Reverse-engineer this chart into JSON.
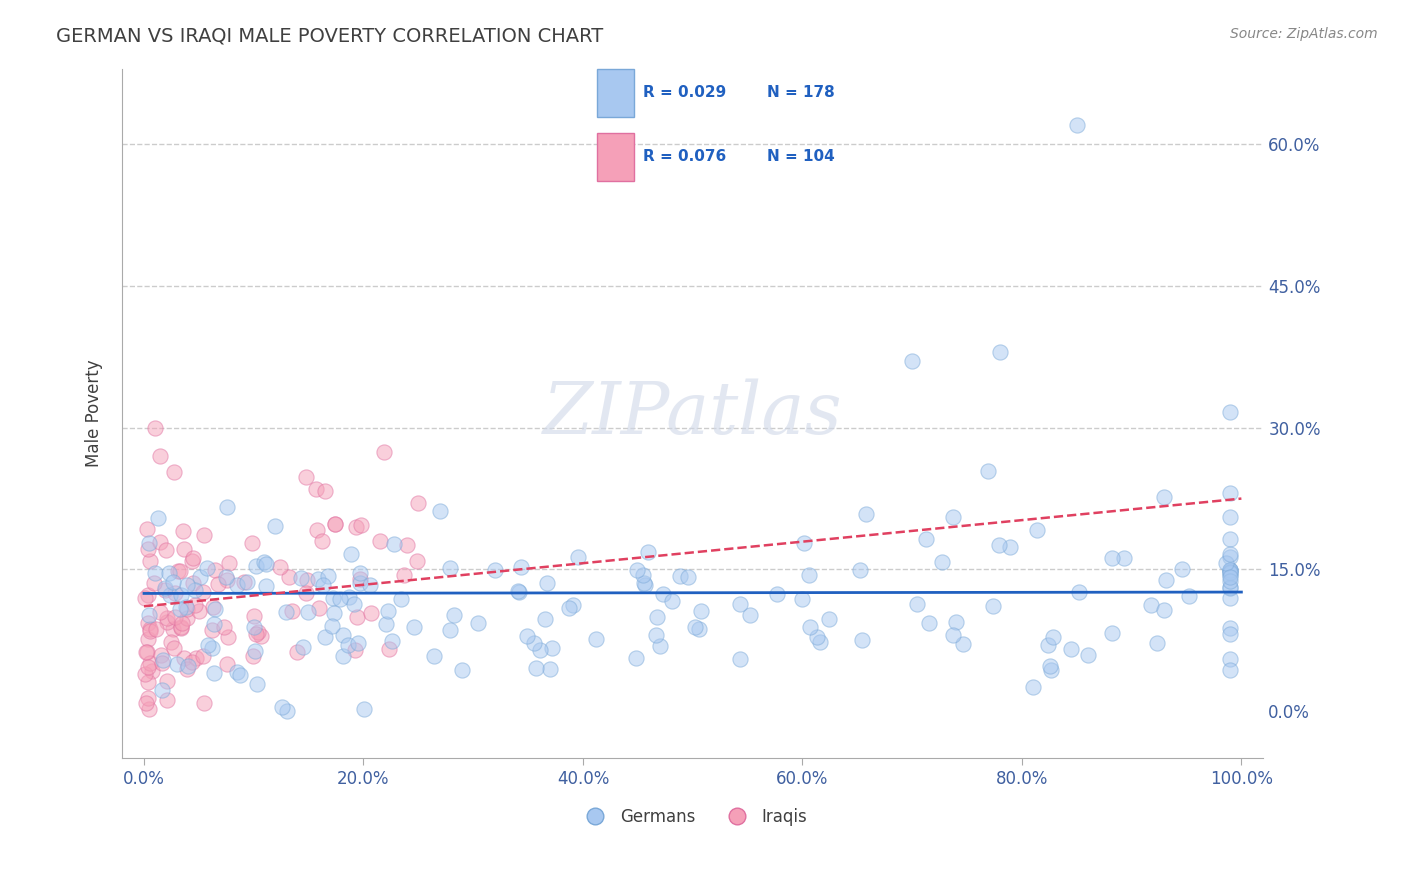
{
  "title": "GERMAN VS IRAQI MALE POVERTY CORRELATION CHART",
  "source": "Source: ZipAtlas.com",
  "xlabel_bottom": "",
  "ylabel": "Male Poverty",
  "x_ticks": [
    0.0,
    20.0,
    40.0,
    60.0,
    80.0,
    100.0
  ],
  "x_tick_labels": [
    "0.0%",
    "20.0%",
    "40.0%",
    "60.0%",
    "80.0%",
    "100.0%"
  ],
  "y_ticks": [
    0.0,
    15.0,
    30.0,
    45.0,
    60.0
  ],
  "y_tick_labels": [
    "0.0%",
    "15.0%",
    "30.0%",
    "45.0%",
    "60.0%"
  ],
  "xlim": [
    -2,
    102
  ],
  "ylim": [
    -5,
    68
  ],
  "german_color": "#a8c8f0",
  "iraqi_color": "#f5a0b8",
  "german_edge_color": "#7aa8d8",
  "iraqi_edge_color": "#e070a0",
  "german_line_color": "#2060c0",
  "iraqi_line_color": "#e04060",
  "legend_R_german": "R = 0.029",
  "legend_N_german": "N = 178",
  "legend_R_iraqi": "R = 0.076",
  "legend_N_iraqi": "N = 104",
  "legend_label_german": "Germans",
  "legend_label_iraqi": "Iraqis",
  "watermark": "ZIPatlas",
  "grid_color": "#cccccc",
  "grid_style": "--",
  "background_color": "#ffffff",
  "title_color": "#404040",
  "axis_label_color": "#4060a0",
  "german_R": 0.029,
  "iraqi_R": 0.076,
  "german_N": 178,
  "iraqi_N": 104,
  "marker_size": 120,
  "marker_alpha": 0.5,
  "german_x_mean": 35,
  "german_y_mean": 12.5,
  "iraqi_x_mean": 8,
  "iraqi_y_mean": 13.5,
  "german_x_std": 28,
  "iraqi_x_std": 7
}
